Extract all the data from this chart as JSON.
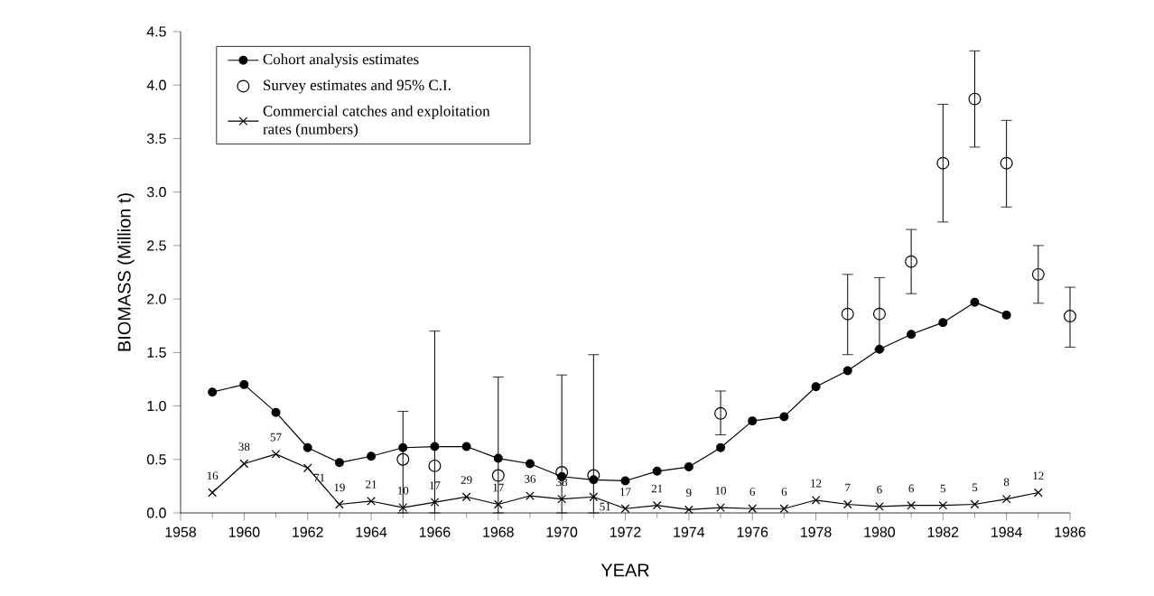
{
  "chart_data": {
    "type": "line",
    "xlabel": "YEAR",
    "ylabel": "BIOMASS (Million t)",
    "xlim": [
      1958,
      1986
    ],
    "xticks": [
      1958,
      1960,
      1962,
      1964,
      1966,
      1968,
      1970,
      1972,
      1974,
      1976,
      1978,
      1980,
      1982,
      1984,
      1986
    ],
    "ylim": [
      0,
      4.5
    ],
    "yticks": [
      {
        "value": 0,
        "label": "0.0"
      },
      {
        "value": 0.5,
        "label": "0.5"
      },
      {
        "value": 1,
        "label": "1.0"
      },
      {
        "value": 1.5,
        "label": "1.5"
      },
      {
        "value": 2,
        "label": "2.0"
      },
      {
        "value": 2.5,
        "label": "2.5"
      },
      {
        "value": 3,
        "label": "3.0"
      },
      {
        "value": 3.5,
        "label": "3.5"
      },
      {
        "value": 4,
        "label": "4.0"
      },
      {
        "value": 4.5,
        "label": "4.5"
      }
    ],
    "legend": "top left",
    "grid": false,
    "series": [
      {
        "name": "Cohort analysis estimates",
        "type": "line",
        "marker": "circle",
        "color": "#000000",
        "x": [
          1959,
          1960,
          1961,
          1962,
          1963,
          1964,
          1965,
          1966,
          1967,
          1968,
          1969,
          1970,
          1971,
          1972,
          1973,
          1974,
          1975,
          1976,
          1977,
          1978,
          1979,
          1980,
          1981,
          1982,
          1983,
          1984
        ],
        "values": [
          1.13,
          1.2,
          0.94,
          0.61,
          0.47,
          0.53,
          0.61,
          0.62,
          0.62,
          0.51,
          0.46,
          0.34,
          0.31,
          0.3,
          0.39,
          0.43,
          0.61,
          0.86,
          0.9,
          1.18,
          1.33,
          1.53,
          1.67,
          1.78,
          1.97,
          1.85
        ]
      },
      {
        "name": "Survey estimates and 95% C.I.",
        "type": "scatter",
        "marker": "circle",
        "color": "#000000",
        "x": [
          1965,
          1966,
          1968,
          1970,
          1971,
          1975,
          1979,
          1980,
          1981,
          1982,
          1983,
          1984,
          1985,
          1986
        ],
        "values": [
          0.5,
          0.44,
          0.35,
          0.38,
          0.35,
          0.93,
          1.86,
          1.86,
          2.35,
          3.27,
          3.87,
          3.27,
          2.23,
          1.84
        ],
        "errors": [
          [
            0,
            0.95
          ],
          [
            0,
            1.7
          ],
          [
            0,
            1.27
          ],
          [
            0,
            1.29
          ],
          [
            0,
            1.48
          ],
          [
            0.73,
            1.14
          ],
          [
            1.48,
            2.23
          ],
          [
            1.53,
            2.2
          ],
          [
            2.05,
            2.65
          ],
          [
            2.72,
            3.82
          ],
          [
            3.42,
            4.32
          ],
          [
            2.86,
            3.67
          ],
          [
            1.96,
            2.5
          ],
          [
            1.55,
            2.11
          ]
        ]
      },
      {
        "name": "Commercial catches and exploitation rates (numbers)",
        "type": "line",
        "marker": "cross",
        "color": "#000000",
        "x": [
          1959,
          1960,
          1961,
          1962,
          1963,
          1964,
          1965,
          1966,
          1967,
          1968,
          1969,
          1970,
          1971,
          1972,
          1973,
          1974,
          1975,
          1976,
          1977,
          1978,
          1979,
          1980,
          1981,
          1982,
          1983,
          1984,
          1985
        ],
        "values": [
          0.19,
          0.46,
          0.55,
          0.42,
          0.08,
          0.11,
          0.05,
          0.1,
          0.15,
          0.08,
          0.16,
          0.13,
          0.15,
          0.04,
          0.07,
          0.03,
          0.05,
          0.04,
          0.04,
          0.12,
          0.08,
          0.06,
          0.07,
          0.07,
          0.08,
          0.13,
          0.19
        ]
      }
    ],
    "annotations": [
      {
        "text": "16",
        "x": 1959,
        "y": 0.19
      },
      {
        "text": "38",
        "x": 1960,
        "y": 0.46
      },
      {
        "text": "57",
        "x": 1961,
        "y": 0.55
      },
      {
        "text": "71",
        "x": 1962,
        "y": 0.42
      },
      {
        "text": "19",
        "x": 1963,
        "y": 0.08
      },
      {
        "text": "21",
        "x": 1964,
        "y": 0.11
      },
      {
        "text": "10",
        "x": 1965,
        "y": 0.05
      },
      {
        "text": "17",
        "x": 1966,
        "y": 0.1
      },
      {
        "text": "29",
        "x": 1967,
        "y": 0.15
      },
      {
        "text": "17",
        "x": 1968,
        "y": 0.08
      },
      {
        "text": "36",
        "x": 1969,
        "y": 0.16
      },
      {
        "text": "38",
        "x": 1970,
        "y": 0.13
      },
      {
        "text": "51",
        "x": 1971,
        "y": 0.15
      },
      {
        "text": "17",
        "x": 1972,
        "y": 0.04
      },
      {
        "text": "21",
        "x": 1973,
        "y": 0.07
      },
      {
        "text": "9",
        "x": 1974,
        "y": 0.03
      },
      {
        "text": "10",
        "x": 1975,
        "y": 0.05
      },
      {
        "text": "6",
        "x": 1976,
        "y": 0.04
      },
      {
        "text": "6",
        "x": 1977,
        "y": 0.04
      },
      {
        "text": "12",
        "x": 1978,
        "y": 0.12
      },
      {
        "text": "7",
        "x": 1979,
        "y": 0.08
      },
      {
        "text": "6",
        "x": 1980,
        "y": 0.06
      },
      {
        "text": "6",
        "x": 1981,
        "y": 0.07
      },
      {
        "text": "5",
        "x": 1982,
        "y": 0.07
      },
      {
        "text": "5",
        "x": 1983,
        "y": 0.08
      },
      {
        "text": "8",
        "x": 1984,
        "y": 0.13
      },
      {
        "text": "12",
        "x": 1985,
        "y": 0.19
      }
    ]
  }
}
